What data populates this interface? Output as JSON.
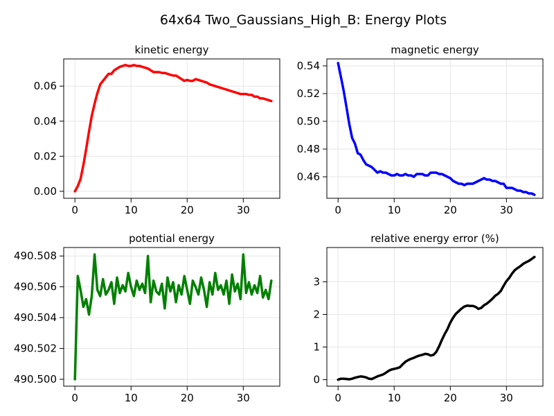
{
  "figure_title": "64x64 Two_Gaussians_High_B: Energy Plots",
  "chart_data": [
    {
      "type": "line",
      "title": "kinetic energy",
      "xlabel": "",
      "ylabel": "",
      "xlim": [
        -2,
        36.5
      ],
      "ylim": [
        -0.004,
        0.0755
      ],
      "xticks": [
        0,
        10,
        20,
        30
      ],
      "yticks": [
        0.0,
        0.02,
        0.04,
        0.06
      ],
      "ytick_labels": [
        "0.00",
        "0.02",
        "0.04",
        "0.06"
      ],
      "grid": true,
      "series": [
        {
          "color": "#ff0000",
          "x": [
            0,
            0.5,
            1,
            1.5,
            2,
            2.5,
            3,
            3.5,
            4,
            4.5,
            5,
            5.5,
            6,
            6.5,
            7,
            7.5,
            8,
            8.5,
            9,
            9.5,
            10,
            10.5,
            11,
            11.5,
            12,
            12.5,
            13,
            13.5,
            14,
            14.5,
            15,
            15.5,
            16,
            16.5,
            17,
            17.5,
            18,
            18.5,
            19,
            19.5,
            20,
            20.5,
            21,
            21.5,
            22,
            22.5,
            23,
            23.5,
            24,
            24.5,
            25,
            25.5,
            26,
            26.5,
            27,
            27.5,
            28,
            28.5,
            29,
            29.5,
            30,
            30.5,
            31,
            31.5,
            32,
            32.5,
            33,
            33.5,
            34,
            34.5,
            35
          ],
          "y": [
            0.0,
            0.003,
            0.007,
            0.015,
            0.024,
            0.034,
            0.043,
            0.05,
            0.056,
            0.061,
            0.063,
            0.065,
            0.067,
            0.067,
            0.069,
            0.07,
            0.071,
            0.0715,
            0.072,
            0.0715,
            0.0715,
            0.072,
            0.0715,
            0.0715,
            0.071,
            0.0705,
            0.07,
            0.069,
            0.068,
            0.068,
            0.068,
            0.0675,
            0.0675,
            0.067,
            0.0665,
            0.066,
            0.066,
            0.065,
            0.064,
            0.063,
            0.0635,
            0.063,
            0.063,
            0.064,
            0.0635,
            0.063,
            0.0625,
            0.062,
            0.061,
            0.0605,
            0.06,
            0.0595,
            0.059,
            0.0585,
            0.058,
            0.0575,
            0.057,
            0.0565,
            0.056,
            0.0555,
            0.0555,
            0.0555,
            0.055,
            0.055,
            0.054,
            0.054,
            0.053,
            0.053,
            0.0525,
            0.052,
            0.0515
          ]
        }
      ]
    },
    {
      "type": "line",
      "title": "magnetic energy",
      "xlabel": "",
      "ylabel": "",
      "xlim": [
        -2,
        36.5
      ],
      "ylim": [
        0.4445,
        0.545
      ],
      "xticks": [
        0,
        10,
        20,
        30
      ],
      "yticks": [
        0.46,
        0.48,
        0.5,
        0.52,
        0.54
      ],
      "ytick_labels": [
        "0.46",
        "0.48",
        "0.50",
        "0.52",
        "0.54"
      ],
      "grid": true,
      "series": [
        {
          "color": "#0000ff",
          "x": [
            0,
            0.5,
            1,
            1.5,
            2,
            2.5,
            3,
            3.5,
            4,
            4.5,
            5,
            5.5,
            6,
            6.5,
            7,
            7.5,
            8,
            8.5,
            9,
            9.5,
            10,
            10.5,
            11,
            11.5,
            12,
            12.5,
            13,
            13.5,
            14,
            14.5,
            15,
            15.5,
            16,
            16.5,
            17,
            17.5,
            18,
            18.5,
            19,
            19.5,
            20,
            20.5,
            21,
            21.5,
            22,
            22.5,
            23,
            23.5,
            24,
            24.5,
            25,
            25.5,
            26,
            26.5,
            27,
            27.5,
            28,
            28.5,
            29,
            29.5,
            30,
            30.5,
            31,
            31.5,
            32,
            32.5,
            33,
            33.5,
            34,
            34.5,
            35
          ],
          "y": [
            0.542,
            0.532,
            0.522,
            0.51,
            0.498,
            0.488,
            0.484,
            0.477,
            0.476,
            0.472,
            0.469,
            0.468,
            0.467,
            0.465,
            0.463,
            0.464,
            0.463,
            0.463,
            0.462,
            0.461,
            0.461,
            0.462,
            0.461,
            0.461,
            0.462,
            0.461,
            0.461,
            0.46,
            0.462,
            0.462,
            0.462,
            0.461,
            0.461,
            0.463,
            0.463,
            0.463,
            0.462,
            0.462,
            0.461,
            0.46,
            0.459,
            0.457,
            0.456,
            0.455,
            0.455,
            0.454,
            0.455,
            0.455,
            0.455,
            0.456,
            0.457,
            0.458,
            0.459,
            0.458,
            0.458,
            0.457,
            0.457,
            0.456,
            0.455,
            0.455,
            0.452,
            0.452,
            0.452,
            0.451,
            0.45,
            0.45,
            0.449,
            0.449,
            0.448,
            0.448,
            0.447
          ]
        }
      ]
    },
    {
      "type": "line",
      "title": "potential energy",
      "xlabel": "",
      "ylabel": "",
      "xlim": [
        -2,
        36.5
      ],
      "ylim": [
        490.49955,
        490.50855
      ],
      "xticks": [
        0,
        10,
        20,
        30
      ],
      "yticks": [
        490.5,
        490.502,
        490.504,
        490.506,
        490.508
      ],
      "ytick_labels": [
        "490.500",
        "490.502",
        "490.504",
        "490.506",
        "490.508"
      ],
      "grid": true,
      "series": [
        {
          "color": "#008000",
          "x": [
            0,
            0.5,
            1,
            1.5,
            2,
            2.5,
            3,
            3.5,
            4,
            4.5,
            5,
            5.5,
            6,
            6.5,
            7,
            7.5,
            8,
            8.5,
            9,
            9.5,
            10,
            10.5,
            11,
            11.5,
            12,
            12.5,
            13,
            13.5,
            14,
            14.5,
            15,
            15.5,
            16,
            16.5,
            17,
            17.5,
            18,
            18.5,
            19,
            19.5,
            20,
            20.5,
            21,
            21.5,
            22,
            22.5,
            23,
            23.5,
            24,
            24.5,
            25,
            25.5,
            26,
            26.5,
            27,
            27.5,
            28,
            28.5,
            29,
            29.5,
            30,
            30.5,
            31,
            31.5,
            32,
            32.5,
            33,
            33.5,
            34,
            34.5,
            35
          ],
          "y": [
            490.5,
            490.5067,
            490.5058,
            490.5047,
            490.5052,
            490.5042,
            490.5054,
            490.5081,
            490.5058,
            490.5054,
            490.5065,
            490.5055,
            490.5058,
            490.5063,
            490.5049,
            490.5066,
            490.5056,
            490.5061,
            490.5057,
            490.5069,
            490.506,
            490.5054,
            490.5064,
            490.5058,
            490.5062,
            490.5056,
            490.508,
            490.505,
            490.5064,
            490.5057,
            490.5055,
            490.5062,
            490.5046,
            490.5066,
            490.5057,
            490.5063,
            490.505,
            490.5061,
            490.5055,
            490.5067,
            490.5058,
            490.5049,
            490.5064,
            490.506,
            490.5055,
            490.5066,
            490.5058,
            490.5047,
            490.5063,
            490.5055,
            490.5069,
            490.5058,
            490.5061,
            490.5055,
            490.5064,
            490.5049,
            490.5068,
            490.5057,
            490.5062,
            490.5052,
            490.5081,
            490.5056,
            490.5063,
            490.5055,
            490.5061,
            490.5056,
            490.5067,
            490.5053,
            490.5058,
            490.5052,
            490.5064
          ]
        }
      ]
    },
    {
      "type": "line",
      "title": "relative energy error (%)",
      "xlabel": "",
      "ylabel": "",
      "xlim": [
        -2,
        36.5
      ],
      "ylim": [
        -0.2,
        4.05
      ],
      "xticks": [
        0,
        10,
        20,
        30
      ],
      "yticks": [
        0,
        1,
        2,
        3
      ],
      "ytick_labels": [
        "0",
        "1",
        "2",
        "3"
      ],
      "grid": true,
      "series": [
        {
          "color": "#000000",
          "x": [
            0,
            0.5,
            1,
            1.5,
            2,
            2.5,
            3,
            3.5,
            4,
            4.5,
            5,
            5.5,
            6,
            6.5,
            7,
            7.5,
            8,
            8.5,
            9,
            9.5,
            10,
            10.5,
            11,
            11.5,
            12,
            12.5,
            13,
            13.5,
            14,
            14.5,
            15,
            15.5,
            16,
            16.5,
            17,
            17.5,
            18,
            18.5,
            19,
            19.5,
            20,
            20.5,
            21,
            21.5,
            22,
            22.5,
            23,
            23.5,
            24,
            24.5,
            25,
            25.5,
            26,
            26.5,
            27,
            27.5,
            28,
            28.5,
            29,
            29.5,
            30,
            30.5,
            31,
            31.5,
            32,
            32.5,
            33,
            33.5,
            34,
            34.5,
            35
          ],
          "y": [
            0.0,
            0.03,
            0.03,
            0.02,
            0.01,
            0.03,
            0.06,
            0.08,
            0.1,
            0.09,
            0.07,
            0.03,
            0.02,
            0.06,
            0.1,
            0.13,
            0.16,
            0.21,
            0.27,
            0.31,
            0.33,
            0.35,
            0.38,
            0.47,
            0.55,
            0.6,
            0.64,
            0.67,
            0.71,
            0.74,
            0.76,
            0.79,
            0.78,
            0.74,
            0.76,
            0.85,
            1.02,
            1.22,
            1.4,
            1.55,
            1.75,
            1.9,
            2.02,
            2.1,
            2.18,
            2.24,
            2.27,
            2.26,
            2.26,
            2.23,
            2.17,
            2.2,
            2.28,
            2.33,
            2.4,
            2.48,
            2.57,
            2.63,
            2.72,
            2.88,
            3.02,
            3.12,
            3.25,
            3.36,
            3.42,
            3.48,
            3.55,
            3.6,
            3.64,
            3.7,
            3.76
          ]
        }
      ]
    }
  ]
}
